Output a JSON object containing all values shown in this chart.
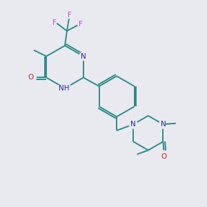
{
  "background_color": "#e8eaf0",
  "bond_color": "#2d8a8a",
  "atom_colors": {
    "N": "#2222cc",
    "O": "#cc2222",
    "F": "#cc44cc",
    "H": "#2d8a8a",
    "C": "#2d8a8a"
  },
  "figsize": [
    3.0,
    3.0
  ],
  "dpi": 100,
  "lw": 1.4
}
